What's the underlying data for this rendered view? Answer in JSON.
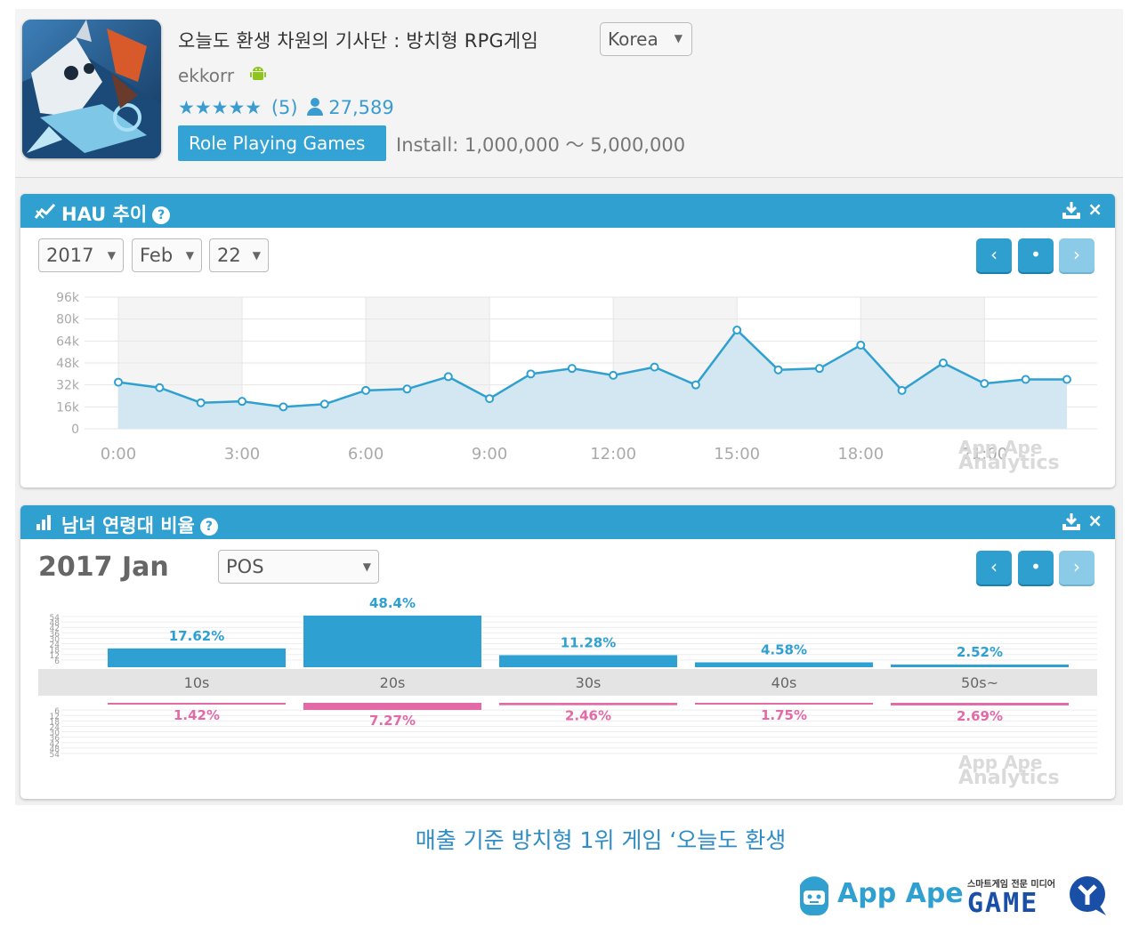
{
  "app": {
    "title": "오늘도 환생 차원의 기사단 : 방치형 RPG게임",
    "country": "Korea",
    "developer": "ekkorr",
    "stars": "★★★★★",
    "review_count": "(5)",
    "users": "27,589",
    "category": "Role Playing Games",
    "installs": "Install: 1,000,000 ～ 5,000,000"
  },
  "hau_panel": {
    "title": "HAU 추이",
    "year": "2017",
    "month": "Feb",
    "day": "22",
    "prev": "‹",
    "today": "•",
    "next": "›",
    "watermark": [
      "App Ape",
      "Analytics"
    ]
  },
  "demo_panel": {
    "title": "남녀 연령대 비율",
    "period": "2017 Jan",
    "os": "POS",
    "prev": "‹",
    "today": "•",
    "next": "›",
    "watermark": [
      "App Ape",
      "Analytics"
    ]
  },
  "caption": "매출 기준 방치형 1위 게임 ‘오늘도 환생",
  "logos": {
    "appape": "App Ape",
    "game_tagline": "스마트게임 전문 미디어",
    "game": "GAME"
  },
  "colors": {
    "accent": "#2fa0cf",
    "male": "#2ea0d2",
    "female": "#e26aa6",
    "grid": "#e6e6e6"
  },
  "chart_data": [
    {
      "type": "area",
      "categories": [
        "0:00",
        "1:00",
        "2:00",
        "3:00",
        "4:00",
        "5:00",
        "6:00",
        "7:00",
        "8:00",
        "9:00",
        "10:00",
        "11:00",
        "12:00",
        "13:00",
        "14:00",
        "15:00",
        "16:00",
        "17:00",
        "18:00",
        "19:00",
        "20:00",
        "21:00",
        "22:00",
        "23:00"
      ],
      "x_tick_labels": [
        "0:00",
        "3:00",
        "6:00",
        "9:00",
        "12:00",
        "15:00",
        "18:00",
        "21:00"
      ],
      "y_tick_labels": [
        "96k",
        "80k",
        "64k",
        "48k",
        "32k",
        "16k",
        "0"
      ],
      "ylim": [
        0,
        96000
      ],
      "values": [
        34000,
        30000,
        19000,
        20000,
        16000,
        18000,
        28000,
        29000,
        38000,
        22000,
        40000,
        44000,
        39000,
        45000,
        32000,
        72000,
        43000,
        44000,
        61000,
        28000,
        48000,
        33000,
        36000,
        36000
      ],
      "grid": true
    },
    {
      "type": "bar",
      "categories": [
        "10s",
        "20s",
        "30s",
        "40s",
        "50s~"
      ],
      "series": [
        {
          "values": [
            17.62,
            48.4,
            11.28,
            4.58,
            2.52
          ],
          "labels": [
            "17.62%",
            "48.4%",
            "11.28%",
            "4.58%",
            "2.52%"
          ]
        },
        {
          "values": [
            1.42,
            7.27,
            2.46,
            1.75,
            2.69
          ],
          "labels": [
            "1.42%",
            "7.27%",
            "2.46%",
            "1.75%",
            "2.69%"
          ]
        }
      ],
      "ylim": [
        0,
        54
      ],
      "y_tick_labels": [
        "54",
        "48",
        "42",
        "36",
        "30",
        "24",
        "18",
        "12",
        "6"
      ],
      "grid": true
    }
  ]
}
